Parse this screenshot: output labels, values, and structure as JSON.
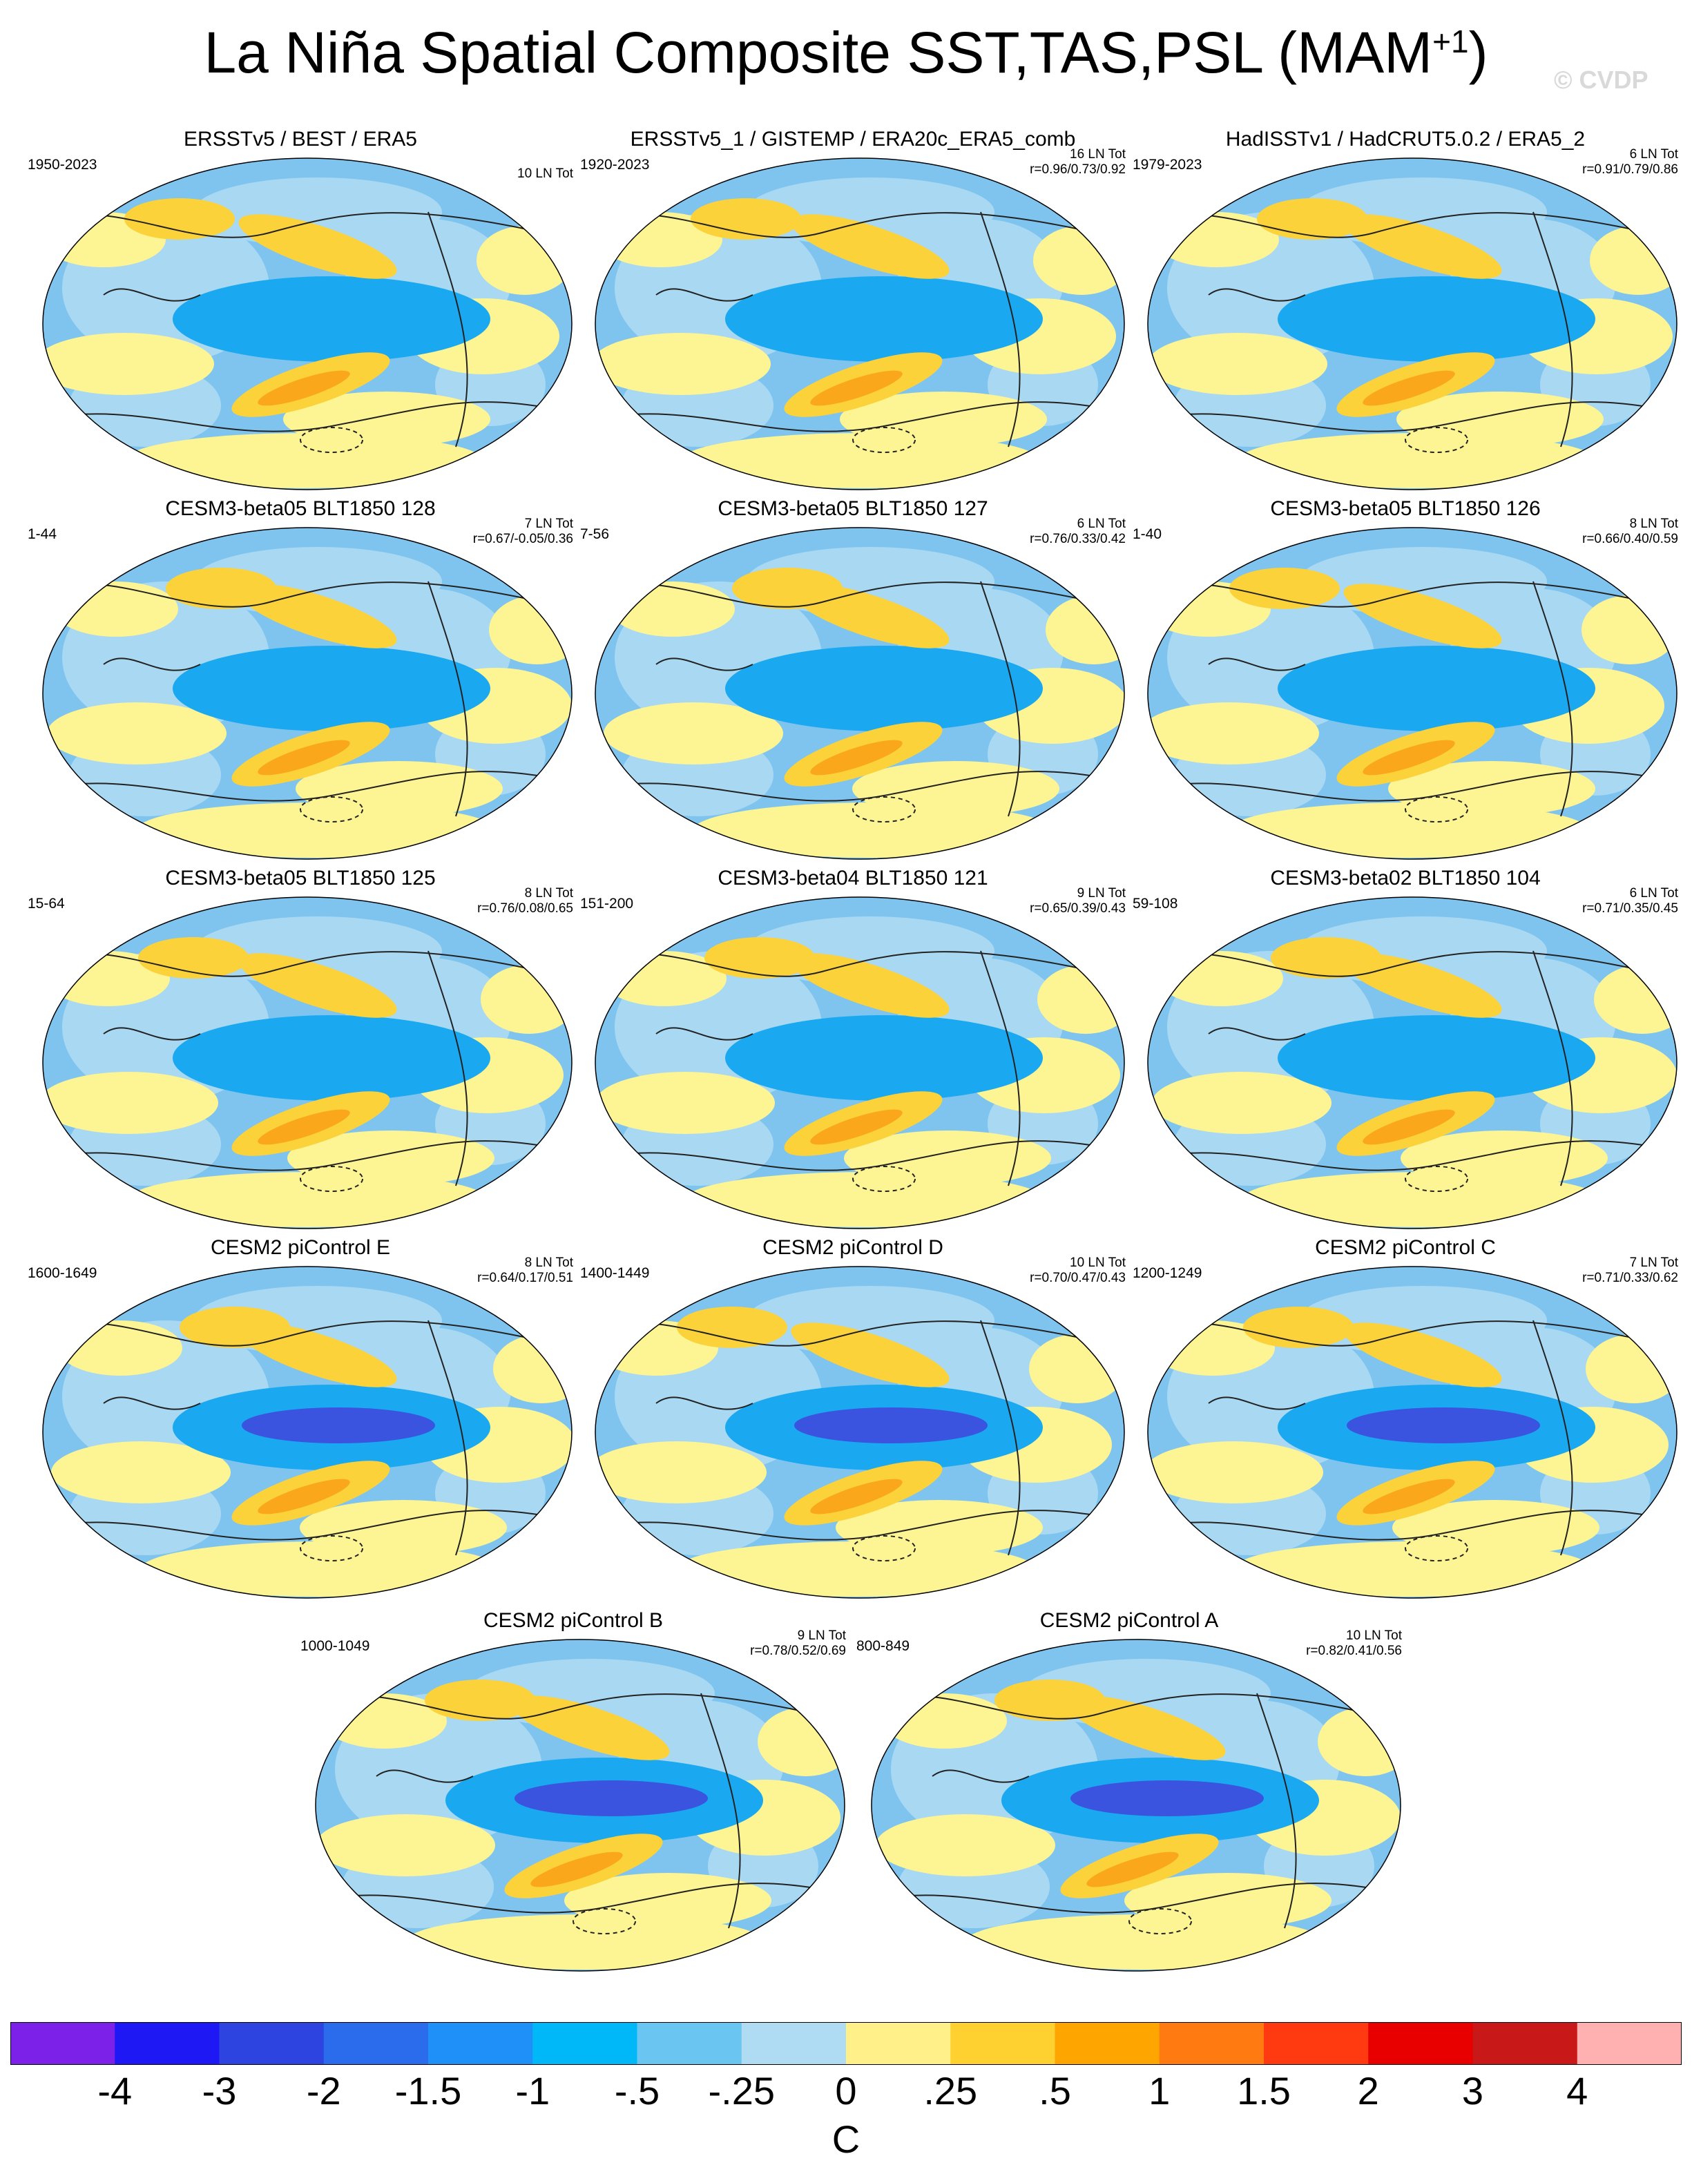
{
  "title": "La Niña Spatial Composite SST,TAS,PSL (MAM",
  "title_superscript": "+1",
  "title_close": ")",
  "watermark": "© CVDP",
  "panels": [
    {
      "title": "ERSSTv5 / BEST / ERA5",
      "years": "1950-2023",
      "count": "10 LN Tot",
      "r": ""
    },
    {
      "title": "ERSSTv5_1 / GISTEMP / ERA20c_ERA5_comb",
      "years": "1920-2023",
      "count": "16 LN Tot",
      "r": "r=0.96/0.73/0.92"
    },
    {
      "title": "HadISSTv1 / HadCRUT5.0.2 / ERA5_2",
      "years": "1979-2023",
      "count": "6 LN Tot",
      "r": "r=0.91/0.79/0.86"
    },
    {
      "title": "CESM3-beta05 BLT1850 128",
      "years": "1-44",
      "count": "7 LN Tot",
      "r": "r=0.67/-0.05/0.36"
    },
    {
      "title": "CESM3-beta05 BLT1850 127",
      "years": "7-56",
      "count": "6 LN Tot",
      "r": "r=0.76/0.33/0.42"
    },
    {
      "title": "CESM3-beta05 BLT1850 126",
      "years": "1-40",
      "count": "8 LN Tot",
      "r": "r=0.66/0.40/0.59"
    },
    {
      "title": "CESM3-beta05 BLT1850 125",
      "years": "15-64",
      "count": "8 LN Tot",
      "r": "r=0.76/0.08/0.65"
    },
    {
      "title": "CESM3-beta04 BLT1850 121",
      "years": "151-200",
      "count": "9 LN Tot",
      "r": "r=0.65/0.39/0.43"
    },
    {
      "title": "CESM3-beta02 BLT1850 104",
      "years": "59-108",
      "count": "6 LN Tot",
      "r": "r=0.71/0.35/0.45"
    },
    {
      "title": "CESM2 piControl E",
      "years": "1600-1649",
      "count": "8 LN Tot",
      "r": "r=0.64/0.17/0.51"
    },
    {
      "title": "CESM2 piControl D",
      "years": "1400-1449",
      "count": "10 LN Tot",
      "r": "r=0.70/0.47/0.43"
    },
    {
      "title": "CESM2 piControl C",
      "years": "1200-1249",
      "count": "7 LN Tot",
      "r": "r=0.71/0.33/0.62"
    },
    {
      "title": "CESM2 piControl B",
      "years": "1000-1049",
      "count": "9 LN Tot",
      "r": "r=0.78/0.52/0.69"
    },
    {
      "title": "CESM2 piControl A",
      "years": "800-849",
      "count": "10 LN Tot",
      "r": "r=0.82/0.41/0.56"
    }
  ],
  "colors": {
    "ocean_base": "#7fc4ef",
    "land": "#a9d8f2",
    "cold_core": "#1aa8f0",
    "deep_cold": "#3a54e0",
    "warm_band": "#fcd23a",
    "warm_strong": "#fba71c",
    "yellow": "#fdf493",
    "contour": "#222222"
  },
  "colorbar": {
    "unit": "C",
    "labels": [
      "-4",
      "-3",
      "-2",
      "-1.5",
      "-1",
      "-.5",
      "-.25",
      "0",
      ".25",
      ".5",
      "1",
      "1.5",
      "2",
      "3",
      "4"
    ],
    "colors": [
      "#7c21e8",
      "#1e18f4",
      "#2d44e0",
      "#2b6cec",
      "#1e90f8",
      "#00b8f8",
      "#6ac6f0",
      "#afdcf2",
      "#fff08a",
      "#fed130",
      "#ffa500",
      "#ff7a10",
      "#ff3a10",
      "#e80000",
      "#c81818",
      "#ffb0b0"
    ]
  },
  "chart_data": {
    "type": "heatmap",
    "title": "La Niña Spatial Composite SST,TAS,PSL (MAM+1)",
    "panel_count": 14,
    "layout": "5 rows: 3/3/3/3/2 map panels",
    "projection": "Robinson-like global map, Pacific-centered",
    "fields": [
      "SST (shaded)",
      "TAS (shaded over land)",
      "PSL (black contours, dashed negative)"
    ],
    "colorbar_unit": "C",
    "colorbar_levels": [
      -4,
      -3,
      -2,
      -1.5,
      -1,
      -0.5,
      -0.25,
      0,
      0.25,
      0.5,
      1,
      1.5,
      2,
      3,
      4
    ]
  }
}
